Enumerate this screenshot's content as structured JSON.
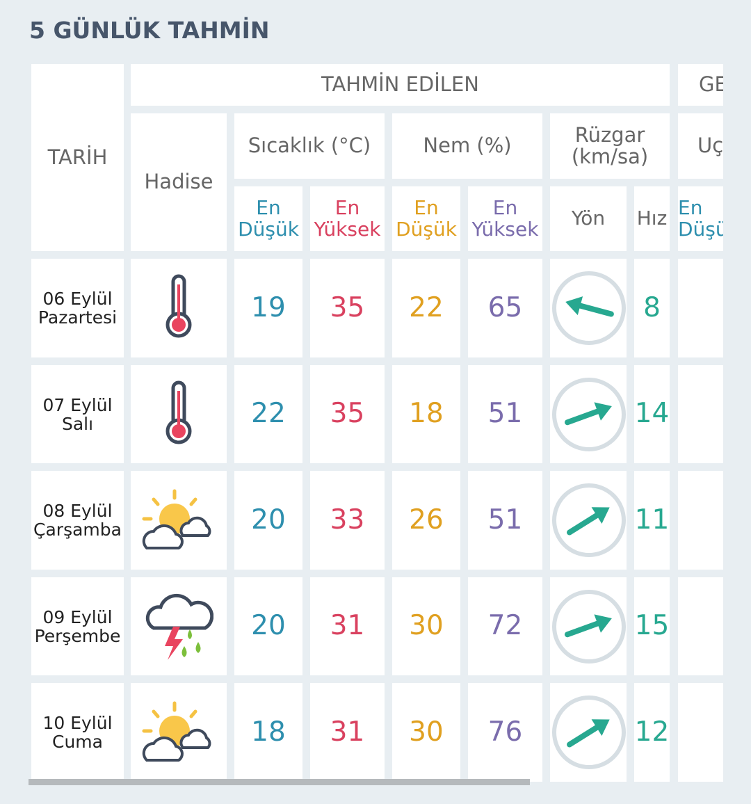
{
  "header": {
    "title": "5 GÜNLÜK TAHMİN"
  },
  "table": {
    "columns": {
      "date": "TARİH",
      "forecast": "TAHMİN EDİLEN",
      "next": "GE",
      "event": "Hadise",
      "temperature": "Sıcaklık (°C)",
      "humidity": "Nem (%)",
      "wind": [
        "Rüzgar",
        "(km/sa)"
      ],
      "next_sub": "Uç",
      "sub": [
        [
          "En",
          "Düşük"
        ],
        [
          "En",
          "Yüksek"
        ],
        [
          "En",
          "Düşük"
        ],
        [
          "En",
          "Yüksek"
        ],
        [
          "Yön"
        ],
        [
          "Hız"
        ],
        [
          "En",
          "Düşü"
        ]
      ]
    },
    "rows": [
      {
        "date": "06 Eylül",
        "day": "Pazartesi",
        "values": [
          19,
          35,
          22,
          65,
          8
        ]
      },
      {
        "date": "07 Eylül",
        "day": "Salı",
        "values": [
          22,
          35,
          18,
          51,
          14
        ]
      },
      {
        "date": "08 Eylül",
        "day": "Çarşamba",
        "values": [
          20,
          33,
          26,
          51,
          11
        ]
      },
      {
        "date": "09 Eylül",
        "day": "Perşembe",
        "values": [
          20,
          31,
          30,
          72,
          15
        ]
      },
      {
        "date": "10 Eylül",
        "day": "Cuma",
        "values": [
          18,
          31,
          30,
          76,
          12
        ]
      }
    ]
  }
}
